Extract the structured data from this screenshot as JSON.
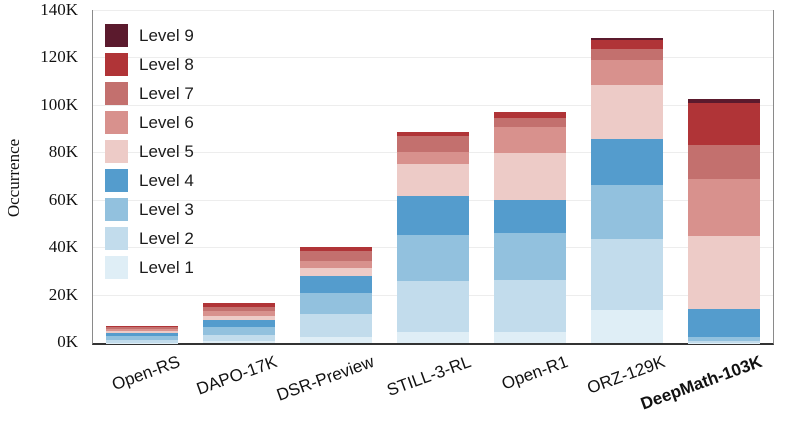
{
  "chart_data": {
    "type": "bar",
    "stacked": true,
    "ylabel": "Occurrence",
    "ylim": [
      0,
      140000
    ],
    "yticks": [
      "0K",
      "20K",
      "40K",
      "60K",
      "80K",
      "100K",
      "120K",
      "140K"
    ],
    "grid": "horizontal",
    "legend_position": "upper-left",
    "legend_order": "level9-to-level1",
    "categories": [
      "Open-RS",
      "DAPO-17K",
      "DSR-Preview",
      "STILL-3-RL",
      "Open-R1",
      "ORZ-129K",
      "DeepMath-103K"
    ],
    "highlight_category": "DeepMath-103K",
    "levels": [
      {
        "name": "Level 1",
        "color": "#dfeef6"
      },
      {
        "name": "Level 2",
        "color": "#c2dcec"
      },
      {
        "name": "Level 3",
        "color": "#92c1de"
      },
      {
        "name": "Level 4",
        "color": "#549ccd"
      },
      {
        "name": "Level 5",
        "color": "#edcbc7"
      },
      {
        "name": "Level 6",
        "color": "#d8918d"
      },
      {
        "name": "Level 7",
        "color": "#c3706e"
      },
      {
        "name": "Level 8",
        "color": "#b03437"
      },
      {
        "name": "Level 9",
        "color": "#5b1a2d"
      }
    ],
    "series": [
      {
        "name": "Level 1",
        "values": [
          200,
          700,
          2500,
          4700,
          4700,
          14000,
          200
        ]
      },
      {
        "name": "Level 2",
        "values": [
          1200,
          2800,
          9700,
          21500,
          22000,
          30000,
          500
        ]
      },
      {
        "name": "Level 3",
        "values": [
          1500,
          3300,
          8800,
          19500,
          19500,
          22500,
          2000
        ]
      },
      {
        "name": "Level 4",
        "values": [
          1400,
          2800,
          7100,
          16500,
          14000,
          19500,
          11500
        ]
      },
      {
        "name": "Level 5",
        "values": [
          800,
          1700,
          3500,
          13500,
          19800,
          23000,
          31000
        ]
      },
      {
        "name": "Level 6",
        "values": [
          800,
          2100,
          2800,
          5000,
          11300,
          10500,
          24000
        ]
      },
      {
        "name": "Level 7",
        "values": [
          700,
          1800,
          4500,
          6500,
          3500,
          4500,
          14500
        ]
      },
      {
        "name": "Level 8",
        "values": [
          400,
          1800,
          1600,
          2000,
          2800,
          4000,
          17500
        ]
      },
      {
        "name": "Level 9",
        "values": [
          0,
          0,
          0,
          0,
          0,
          500,
          1800
        ]
      }
    ],
    "totals": [
      7000,
      17000,
      40500,
      89200,
      97600,
      128500,
      103000
    ]
  }
}
